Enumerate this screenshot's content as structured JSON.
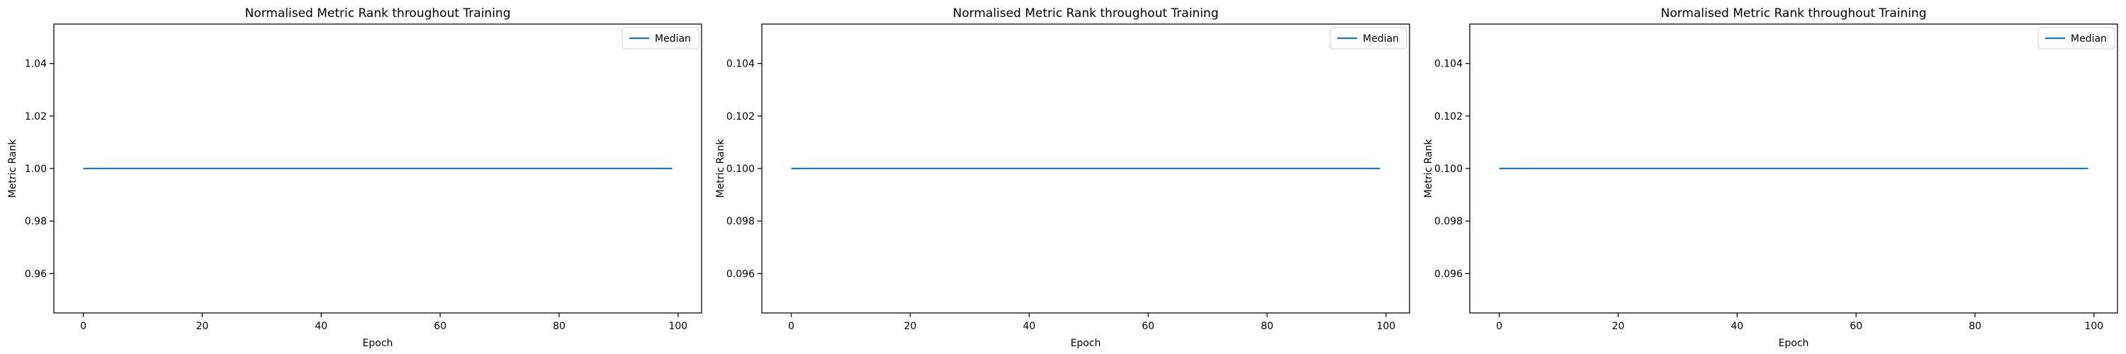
{
  "chart_data": [
    {
      "type": "line",
      "title": "Normalised Metric Rank throughout Training",
      "xlabel": "Epoch",
      "ylabel": "Metric Rank",
      "xlim": [
        -4.95,
        103.95
      ],
      "ylim": [
        0.945,
        1.055
      ],
      "xticks": [
        0,
        20,
        40,
        60,
        80,
        100
      ],
      "xtick_labels": [
        "0",
        "20",
        "40",
        "60",
        "80",
        "100"
      ],
      "yticks": [
        0.96,
        0.98,
        1.0,
        1.02,
        1.04
      ],
      "ytick_labels": [
        "0.96",
        "0.98",
        "1.00",
        "1.02",
        "1.04"
      ],
      "legend_position": "top-right",
      "grid": false,
      "series": [
        {
          "name": "Median",
          "color": "#1f77b4",
          "x": [
            0,
            99
          ],
          "y": [
            1.0,
            1.0
          ]
        }
      ]
    },
    {
      "type": "line",
      "title": "Normalised Metric Rank throughout Training",
      "xlabel": "Epoch",
      "ylabel": "Metric Rank",
      "xlim": [
        -4.95,
        103.95
      ],
      "ylim": [
        0.0945,
        0.1055
      ],
      "xticks": [
        0,
        20,
        40,
        60,
        80,
        100
      ],
      "xtick_labels": [
        "0",
        "20",
        "40",
        "60",
        "80",
        "100"
      ],
      "yticks": [
        0.096,
        0.098,
        0.1,
        0.102,
        0.104
      ],
      "ytick_labels": [
        "0.096",
        "0.098",
        "0.100",
        "0.102",
        "0.104"
      ],
      "legend_position": "top-right",
      "grid": false,
      "series": [
        {
          "name": "Median",
          "color": "#1f77b4",
          "x": [
            0,
            99
          ],
          "y": [
            0.1,
            0.1
          ]
        }
      ]
    },
    {
      "type": "line",
      "title": "Normalised Metric Rank throughout Training",
      "xlabel": "Epoch",
      "ylabel": "Metric Rank",
      "xlim": [
        -4.95,
        103.95
      ],
      "ylim": [
        0.0945,
        0.1055
      ],
      "xticks": [
        0,
        20,
        40,
        60,
        80,
        100
      ],
      "xtick_labels": [
        "0",
        "20",
        "40",
        "60",
        "80",
        "100"
      ],
      "yticks": [
        0.096,
        0.098,
        0.1,
        0.102,
        0.104
      ],
      "ytick_labels": [
        "0.096",
        "0.098",
        "0.100",
        "0.102",
        "0.104"
      ],
      "legend_position": "top-right",
      "grid": false,
      "series": [
        {
          "name": "Median",
          "color": "#1f77b4",
          "x": [
            0,
            99
          ],
          "y": [
            0.1,
            0.1
          ]
        }
      ]
    }
  ]
}
